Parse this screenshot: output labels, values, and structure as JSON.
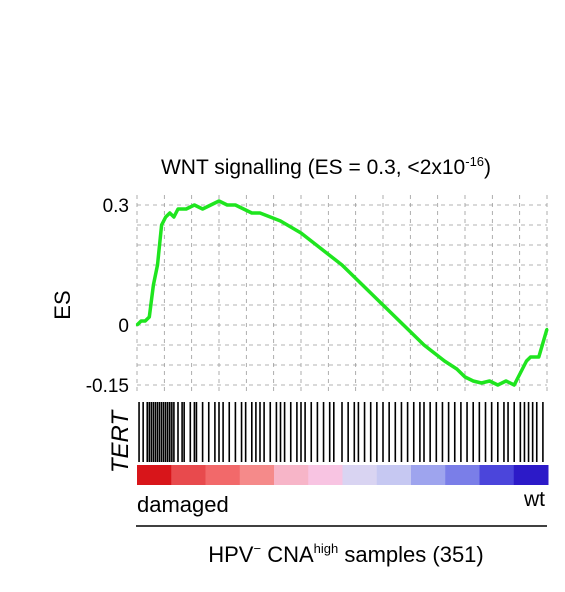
{
  "chart_data": {
    "type": "line",
    "title_main": "WNT signalling (ES = 0.3, <2x10",
    "title_sup": "-16",
    "title_end": ")",
    "ylabel": "ES",
    "ylim": [
      -0.15,
      0.3
    ],
    "yticks": [
      {
        "value": 0.3,
        "label": "0.3"
      },
      {
        "value": 0,
        "label": "0"
      },
      {
        "value": -0.15,
        "label": "-0.15"
      }
    ],
    "grid": true,
    "series": [
      {
        "color": "#1fe51f",
        "x": [
          0,
          0.01,
          0.02,
          0.03,
          0.04,
          0.05,
          0.06,
          0.07,
          0.08,
          0.09,
          0.1,
          0.12,
          0.14,
          0.16,
          0.18,
          0.2,
          0.22,
          0.24,
          0.26,
          0.28,
          0.3,
          0.35,
          0.4,
          0.45,
          0.5,
          0.55,
          0.6,
          0.65,
          0.7,
          0.75,
          0.78,
          0.8,
          0.82,
          0.84,
          0.86,
          0.88,
          0.9,
          0.92,
          0.93,
          0.94,
          0.95,
          0.96,
          0.98,
          1.0
        ],
        "y": [
          0.0,
          0.01,
          0.01,
          0.02,
          0.1,
          0.15,
          0.25,
          0.27,
          0.28,
          0.27,
          0.29,
          0.29,
          0.3,
          0.29,
          0.3,
          0.31,
          0.3,
          0.3,
          0.29,
          0.28,
          0.28,
          0.26,
          0.23,
          0.19,
          0.15,
          0.1,
          0.05,
          0.0,
          -0.05,
          -0.09,
          -0.11,
          -0.13,
          -0.14,
          -0.145,
          -0.14,
          -0.15,
          -0.14,
          -0.15,
          -0.13,
          -0.11,
          -0.09,
          -0.08,
          -0.08,
          -0.01
        ]
      }
    ],
    "barcode": {
      "label": "TERT",
      "hits": [
        0.005,
        0.015,
        0.025,
        0.03,
        0.035,
        0.04,
        0.045,
        0.05,
        0.055,
        0.06,
        0.065,
        0.07,
        0.075,
        0.08,
        0.085,
        0.09,
        0.1,
        0.11,
        0.115,
        0.13,
        0.14,
        0.145,
        0.16,
        0.175,
        0.19,
        0.2,
        0.21,
        0.225,
        0.24,
        0.255,
        0.265,
        0.28,
        0.29,
        0.3,
        0.31,
        0.325,
        0.34,
        0.35,
        0.36,
        0.375,
        0.39,
        0.4,
        0.41,
        0.425,
        0.44,
        0.455,
        0.47,
        0.48,
        0.5,
        0.515,
        0.53,
        0.54,
        0.555,
        0.57,
        0.585,
        0.6,
        0.615,
        0.63,
        0.645,
        0.66,
        0.675,
        0.69,
        0.7,
        0.715,
        0.73,
        0.745,
        0.76,
        0.775,
        0.79,
        0.805,
        0.82,
        0.835,
        0.85,
        0.865,
        0.88,
        0.895,
        0.905,
        0.92,
        0.935,
        0.945,
        0.955,
        0.965,
        0.975,
        0.99
      ]
    },
    "gradient": {
      "colors": [
        "#d8151a",
        "#e84a4d",
        "#f2696a",
        "#f58a8a",
        "#f7b5c8",
        "#f8c4e2",
        "#d9d4f2",
        "#c6c8f2",
        "#9ea4ee",
        "#7a7ee8",
        "#4b45db",
        "#2c1ac8"
      ],
      "left_label": "damaged",
      "right_label": "wt"
    },
    "xlabel_pre": "HPV",
    "xlabel_sup1": "−",
    "xlabel_mid": " CNA",
    "xlabel_sup2": "high",
    "xlabel_post": " samples (351)"
  }
}
